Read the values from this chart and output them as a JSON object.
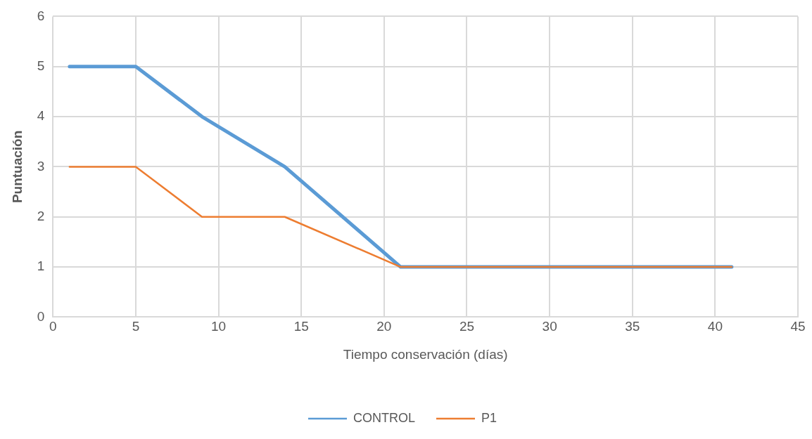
{
  "chart_data": {
    "type": "line",
    "xlabel": "Tiempo conservación (días)",
    "ylabel": "Puntuación",
    "series": [
      {
        "name": "CONTROL",
        "color": "#5b9bd5",
        "x": [
          1,
          5,
          9,
          14,
          21,
          41
        ],
        "values": [
          5,
          5,
          4,
          3,
          1,
          1
        ]
      },
      {
        "name": "P1",
        "color": "#ed7d31",
        "x": [
          1,
          5,
          9,
          14,
          21,
          41
        ],
        "values": [
          3,
          3,
          2,
          2,
          1,
          1
        ]
      }
    ],
    "xlim": [
      0,
      45
    ],
    "xticks": [
      0,
      5,
      10,
      15,
      20,
      25,
      30,
      35,
      40,
      45
    ],
    "ylim": [
      0,
      6
    ],
    "yticks": [
      0,
      1,
      2,
      3,
      4,
      5,
      6
    ],
    "grid": true,
    "legend": "bottom",
    "marker": "none",
    "line_style": "solid"
  }
}
